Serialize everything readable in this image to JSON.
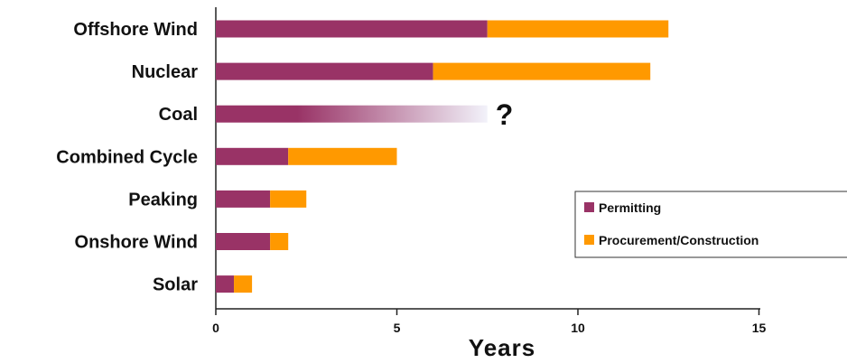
{
  "chart_data": {
    "type": "bar",
    "orientation": "horizontal",
    "stacked": true,
    "categories": [
      "Offshore Wind",
      "Nuclear",
      "Coal",
      "Combined Cycle",
      "Peaking",
      "Onshore Wind",
      "Solar"
    ],
    "series": [
      {
        "name": "Permitting",
        "color": "#993366",
        "values": [
          7.5,
          6,
          7.5,
          2,
          1.5,
          1.5,
          0.5
        ]
      },
      {
        "name": "Procurement/Construction",
        "color": "#FF9900",
        "values": [
          5,
          6,
          null,
          3,
          1,
          0.5,
          0.5
        ]
      }
    ],
    "xlabel": "Years",
    "ylabel": "",
    "xlim": [
      0,
      15
    ],
    "xticks": [
      0,
      5,
      10,
      15
    ],
    "annotations": [
      {
        "category": "Coal",
        "text": "?",
        "note": "permitting bar fades out; no procurement/construction value shown"
      }
    ],
    "gradient_category": "Coal",
    "legend_position": "right",
    "grid": false
  }
}
